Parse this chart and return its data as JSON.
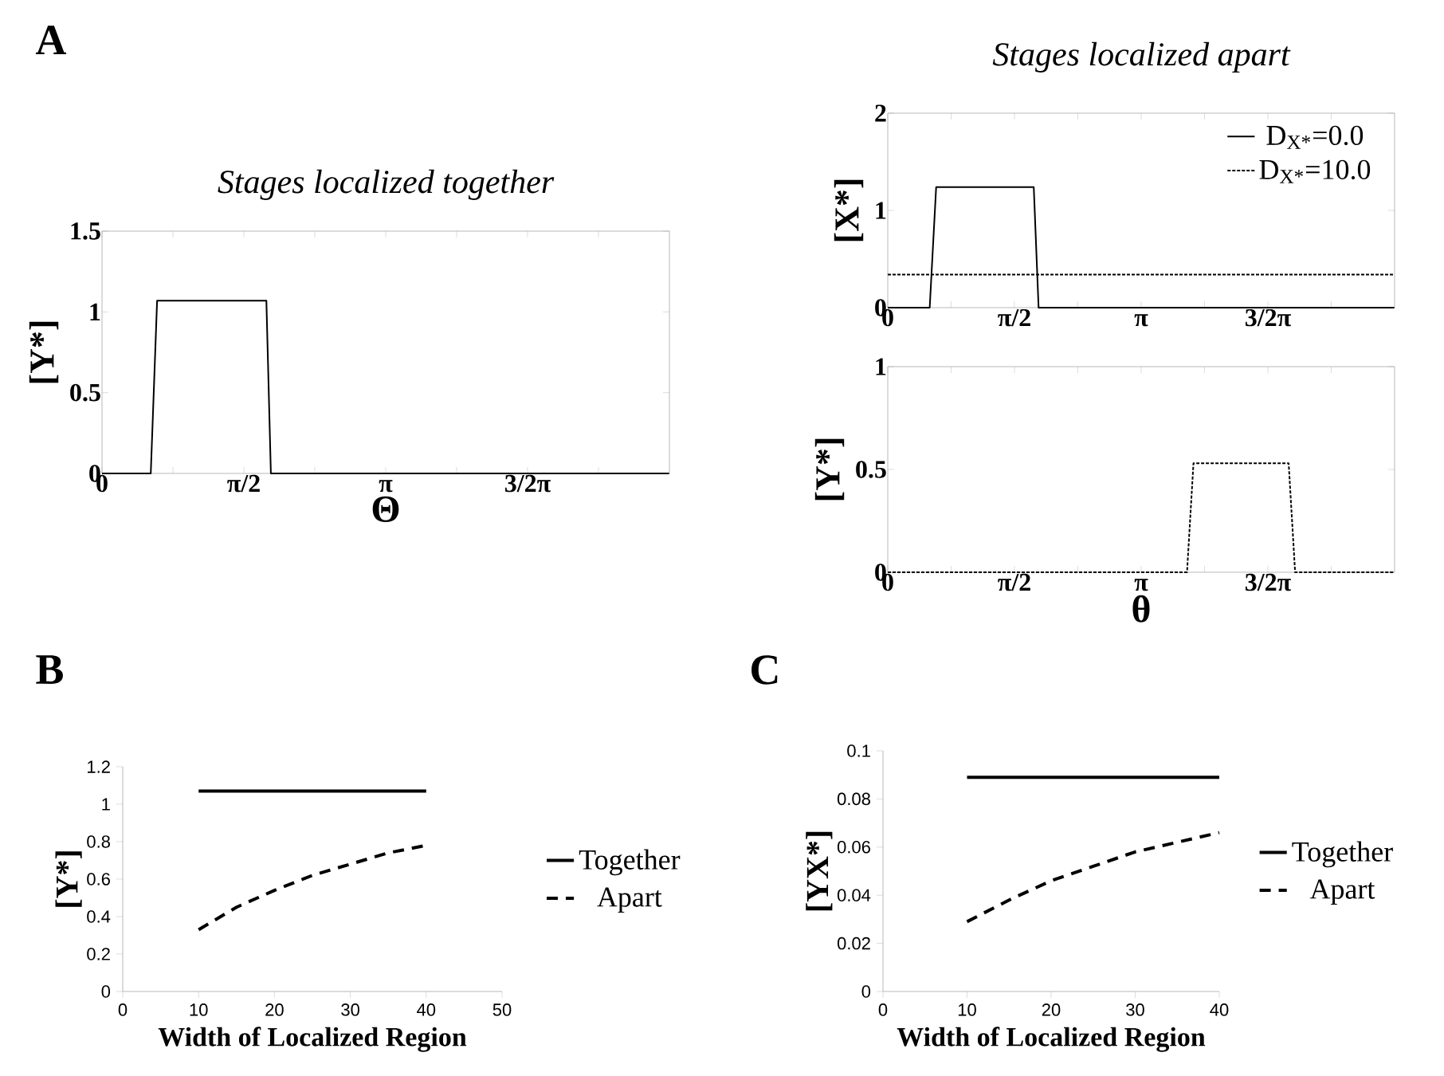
{
  "chart_data": [
    {
      "type": "line",
      "title": "Stages localized together",
      "xlabel": "Θ",
      "ylabel": "[Y*]",
      "xlim": [
        0,
        6.2832
      ],
      "ylim": [
        0,
        1.5
      ],
      "xticks": [
        0,
        {
          "value": 0.7854,
          "label": null
        },
        {
          "value": 1.5708,
          "label": "π/2"
        },
        {
          "value": 2.3562,
          "label": null
        },
        {
          "value": 3.1416,
          "label": "π"
        },
        {
          "value": 3.927,
          "label": null
        },
        {
          "value": 4.7124,
          "label": "3/2π"
        },
        {
          "value": 5.4978,
          "label": null
        }
      ],
      "yticks": [
        0,
        0.5,
        1,
        1.5
      ],
      "series": [
        {
          "color": "#000000",
          "line_style": "solid",
          "x": [
            0,
            0.54,
            0.61,
            1.82,
            1.87,
            6.28
          ],
          "values": [
            0,
            0,
            1.07,
            1.07,
            0,
            0
          ]
        }
      ],
      "annotations": [
        "A"
      ]
    },
    {
      "type": "line",
      "title": "Stages localized apart",
      "ylabel": "[X*]",
      "xlim": [
        0,
        6.2832
      ],
      "ylim": [
        0,
        2
      ],
      "xticks": [
        0,
        {
          "value": 0.7854,
          "label": null
        },
        {
          "value": 1.5708,
          "label": "π/2"
        },
        {
          "value": 2.3562,
          "label": null
        },
        {
          "value": 3.1416,
          "label": "π"
        },
        {
          "value": 3.927,
          "label": null
        },
        {
          "value": 4.7124,
          "label": "3/2π"
        },
        {
          "value": 5.4978,
          "label": null
        }
      ],
      "yticks": [
        0,
        1,
        2
      ],
      "legend": "top right",
      "series": [
        {
          "name": "D$_{X*}$=0.0",
          "color": "#000000",
          "line_style": "solid",
          "x": [
            0,
            0.52,
            0.6,
            1.81,
            1.87,
            6.28
          ],
          "values": [
            0,
            0,
            1.24,
            1.24,
            0,
            0
          ]
        },
        {
          "name": "D$_{X*}$=10.0",
          "color": "#000000",
          "line_style": "dashed",
          "x": [
            0,
            6.28
          ],
          "values": [
            0.34,
            0.34
          ]
        }
      ]
    },
    {
      "type": "line",
      "xlabel": "θ",
      "ylabel": "[Y*]",
      "xlim": [
        0,
        6.2832
      ],
      "ylim": [
        0,
        1
      ],
      "xticks": [
        0,
        {
          "value": 0.7854,
          "label": null
        },
        {
          "value": 1.5708,
          "label": "π/2"
        },
        {
          "value": 2.3562,
          "label": null
        },
        {
          "value": 3.1416,
          "label": "π"
        },
        {
          "value": 3.927,
          "label": null
        },
        {
          "value": 4.7124,
          "label": "3/2π"
        },
        {
          "value": 5.4978,
          "label": null
        }
      ],
      "yticks": [
        0,
        0.5,
        1
      ],
      "series": [
        {
          "color": "#000000",
          "line_style": "dashed",
          "x": [
            0,
            3.71,
            3.79,
            4.97,
            5.05,
            6.28
          ],
          "values": [
            0,
            0,
            0.53,
            0.53,
            0,
            0
          ]
        }
      ]
    },
    {
      "type": "line",
      "xlabel": "Width of Localized Region",
      "ylabel": "[Y*]",
      "xlim": [
        0,
        50
      ],
      "ylim": [
        0,
        1.2
      ],
      "xticks": [
        0,
        10,
        20,
        30,
        40,
        50
      ],
      "yticks": [
        0,
        0.2,
        0.4,
        0.6,
        0.8,
        1,
        1.2
      ],
      "legend": "right",
      "series": [
        {
          "name": "Together",
          "color": "#000000",
          "line_style": "solid",
          "x": [
            10,
            40
          ],
          "values": [
            1.07,
            1.07
          ]
        },
        {
          "name": "Apart",
          "color": "#000000",
          "line_style": "dashed",
          "x": [
            10,
            15,
            20,
            25,
            30,
            35,
            40
          ],
          "values": [
            0.33,
            0.45,
            0.54,
            0.62,
            0.68,
            0.74,
            0.78
          ]
        }
      ],
      "annotations": [
        "B"
      ]
    },
    {
      "type": "line",
      "xlabel": "Width of Localized Region",
      "ylabel": "[YX*]",
      "xlim": [
        0,
        40
      ],
      "ylim": [
        0,
        0.1
      ],
      "xticks": [
        0,
        10,
        20,
        30,
        40
      ],
      "yticks": [
        0,
        0.02,
        0.04,
        0.06,
        0.08,
        0.1
      ],
      "legend": "right",
      "series": [
        {
          "name": "Together",
          "color": "#000000",
          "line_style": "solid",
          "x": [
            10,
            40
          ],
          "values": [
            0.089,
            0.089
          ]
        },
        {
          "name": "Apart",
          "color": "#000000",
          "line_style": "dashed",
          "x": [
            10,
            15,
            20,
            25,
            30,
            35,
            40
          ],
          "values": [
            0.029,
            0.038,
            0.046,
            0.052,
            0.058,
            0.062,
            0.066
          ]
        }
      ],
      "annotations": [
        "C"
      ]
    }
  ]
}
